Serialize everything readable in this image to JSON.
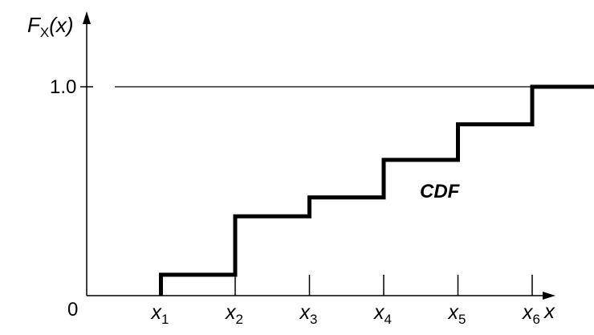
{
  "chart_data": {
    "type": "line",
    "subtype": "step-cdf",
    "ylabel": "F_X(x)",
    "ylabel_base": "F",
    "ylabel_sub": "X",
    "ylabel_tail": "(x)",
    "xlabel": "x",
    "origin_label": "0",
    "y_tick_label": "1.0",
    "y_tick_value": 1.0,
    "annotation": "CDF",
    "reference_line": {
      "y": 1.0,
      "style": "thin horizontal line"
    },
    "x": [
      1,
      2,
      3,
      4,
      5,
      6
    ],
    "x_tick_labels": [
      {
        "base": "x",
        "sub": "1"
      },
      {
        "base": "x",
        "sub": "2"
      },
      {
        "base": "x",
        "sub": "3"
      },
      {
        "base": "x",
        "sub": "4"
      },
      {
        "base": "x",
        "sub": "5"
      },
      {
        "base": "x",
        "sub": "6"
      }
    ],
    "step_values": [
      0.1,
      0.38,
      0.47,
      0.65,
      0.82,
      1.0
    ],
    "xlim": [
      0,
      7.45
    ],
    "ylim": [
      0,
      1.25
    ],
    "grid": false,
    "colors": {
      "line": "#000000",
      "axes": "#000000"
    }
  }
}
